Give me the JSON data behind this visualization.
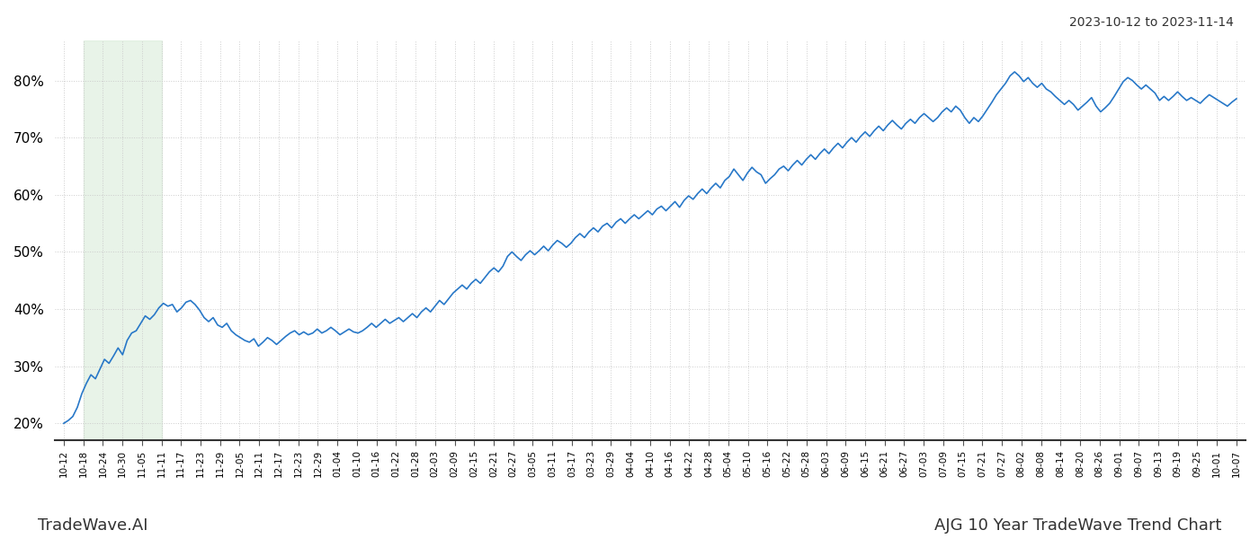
{
  "title_top_right": "2023-10-12 to 2023-11-14",
  "title_bottom_left": "TradeWave.AI",
  "title_bottom_right": "AJG 10 Year TradeWave Trend Chart",
  "line_color": "#2878C8",
  "line_width": 1.2,
  "shade_color": "#d6ead6",
  "shade_alpha": 0.55,
  "background_color": "#ffffff",
  "grid_color": "#cccccc",
  "ylim": [
    17,
    87
  ],
  "yticks": [
    20,
    30,
    40,
    50,
    60,
    70,
    80
  ],
  "shade_start_label": "10-18",
  "shade_end_label": "11-11",
  "x_labels": [
    "10-12",
    "10-18",
    "10-24",
    "10-30",
    "11-05",
    "11-11",
    "11-17",
    "11-23",
    "11-29",
    "12-05",
    "12-11",
    "12-17",
    "12-23",
    "12-29",
    "01-04",
    "01-10",
    "01-16",
    "01-22",
    "01-28",
    "02-03",
    "02-09",
    "02-15",
    "02-21",
    "02-27",
    "03-05",
    "03-11",
    "03-17",
    "03-23",
    "03-29",
    "04-04",
    "04-10",
    "04-16",
    "04-22",
    "04-28",
    "05-04",
    "05-10",
    "05-16",
    "05-22",
    "05-28",
    "06-03",
    "06-09",
    "06-15",
    "06-21",
    "06-27",
    "07-03",
    "07-09",
    "07-15",
    "07-21",
    "07-27",
    "08-02",
    "08-08",
    "08-14",
    "08-20",
    "08-26",
    "09-01",
    "09-07",
    "09-13",
    "09-19",
    "09-25",
    "10-01",
    "10-07"
  ],
  "y_values": [
    20.0,
    20.5,
    21.2,
    22.8,
    25.2,
    27.0,
    28.5,
    27.8,
    29.5,
    31.2,
    30.5,
    31.8,
    33.2,
    32.0,
    34.5,
    35.8,
    36.2,
    37.5,
    38.8,
    38.2,
    39.0,
    40.2,
    41.0,
    40.5,
    40.8,
    39.5,
    40.2,
    41.2,
    41.5,
    40.8,
    39.8,
    38.5,
    37.8,
    38.5,
    37.2,
    36.8,
    37.5,
    36.2,
    35.5,
    35.0,
    34.5,
    34.2,
    34.8,
    33.5,
    34.2,
    35.0,
    34.5,
    33.8,
    34.5,
    35.2,
    35.8,
    36.2,
    35.5,
    36.0,
    35.5,
    35.8,
    36.5,
    35.8,
    36.2,
    36.8,
    36.2,
    35.5,
    36.0,
    36.5,
    36.0,
    35.8,
    36.2,
    36.8,
    37.5,
    36.8,
    37.5,
    38.2,
    37.5,
    38.0,
    38.5,
    37.8,
    38.5,
    39.2,
    38.5,
    39.5,
    40.2,
    39.5,
    40.5,
    41.5,
    40.8,
    41.8,
    42.8,
    43.5,
    44.2,
    43.5,
    44.5,
    45.2,
    44.5,
    45.5,
    46.5,
    47.2,
    46.5,
    47.5,
    49.2,
    50.0,
    49.2,
    48.5,
    49.5,
    50.2,
    49.5,
    50.2,
    51.0,
    50.2,
    51.2,
    52.0,
    51.5,
    50.8,
    51.5,
    52.5,
    53.2,
    52.5,
    53.5,
    54.2,
    53.5,
    54.5,
    55.0,
    54.2,
    55.2,
    55.8,
    55.0,
    55.8,
    56.5,
    55.8,
    56.5,
    57.2,
    56.5,
    57.5,
    58.0,
    57.2,
    58.0,
    58.8,
    57.8,
    59.0,
    59.8,
    59.2,
    60.2,
    61.0,
    60.2,
    61.2,
    62.0,
    61.2,
    62.5,
    63.2,
    64.5,
    63.5,
    62.5,
    63.8,
    64.8,
    64.0,
    63.5,
    62.0,
    62.8,
    63.5,
    64.5,
    65.0,
    64.2,
    65.2,
    66.0,
    65.2,
    66.2,
    67.0,
    66.2,
    67.2,
    68.0,
    67.2,
    68.2,
    69.0,
    68.2,
    69.2,
    70.0,
    69.2,
    70.2,
    71.0,
    70.2,
    71.2,
    72.0,
    71.2,
    72.2,
    73.0,
    72.2,
    71.5,
    72.5,
    73.2,
    72.5,
    73.5,
    74.2,
    73.5,
    72.8,
    73.5,
    74.5,
    75.2,
    74.5,
    75.5,
    74.8,
    73.5,
    72.5,
    73.5,
    72.8,
    73.8,
    75.0,
    76.2,
    77.5,
    78.5,
    79.5,
    80.8,
    81.5,
    80.8,
    79.8,
    80.5,
    79.5,
    78.8,
    79.5,
    78.5,
    78.0,
    77.2,
    76.5,
    75.8,
    76.5,
    75.8,
    74.8,
    75.5,
    76.2,
    77.0,
    75.5,
    74.5,
    75.2,
    76.0,
    77.2,
    78.5,
    79.8,
    80.5,
    80.0,
    79.2,
    78.5,
    79.2,
    78.5,
    77.8,
    76.5,
    77.2,
    76.5,
    77.2,
    78.0,
    77.2,
    76.5,
    77.0,
    76.5,
    76.0,
    76.8,
    77.5,
    77.0,
    76.5,
    76.0,
    75.5,
    76.2,
    76.8
  ]
}
